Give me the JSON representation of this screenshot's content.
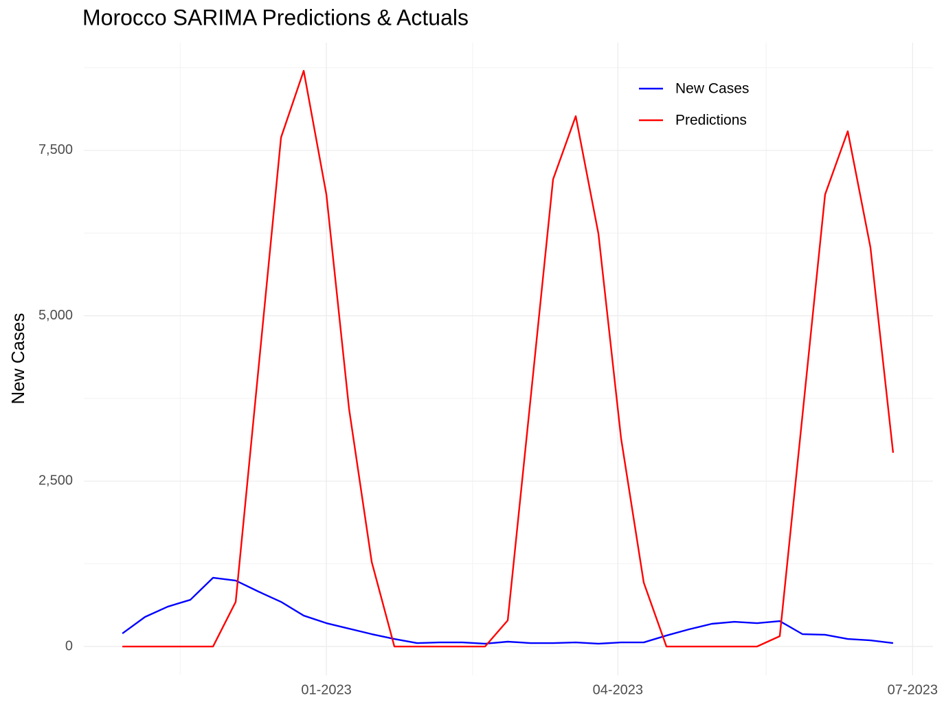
{
  "chart_data": {
    "type": "line",
    "title": "Morocco SARIMA Predictions & Actuals",
    "y_label": "New Cases",
    "x": [
      0,
      1,
      2,
      3,
      4,
      5,
      6,
      7,
      8,
      9,
      10,
      11,
      12,
      13,
      14,
      15,
      16,
      17,
      18,
      19,
      20,
      21,
      22,
      23,
      24,
      25,
      26,
      27,
      28,
      29,
      30,
      31,
      32,
      33,
      34
    ],
    "series": [
      {
        "name": "New Cases",
        "color": "#0000ff",
        "values": [
          197,
          447,
          602,
          706,
          1039,
          997,
          831,
          675,
          467,
          353,
          270,
          187,
          114,
          52,
          62,
          62,
          42,
          73,
          52,
          52,
          62,
          42,
          62,
          62,
          166,
          260,
          343,
          374,
          353,
          384,
          187,
          177,
          114,
          93,
          52
        ]
      },
      {
        "name": "Predictions",
        "color": "#ff0000",
        "values": [
          0,
          0,
          0,
          0,
          0,
          675,
          4183,
          7696,
          8704,
          6834,
          3594,
          1278,
          0,
          0,
          0,
          0,
          0,
          395,
          3718,
          7063,
          8018,
          6242,
          3147,
          966,
          0,
          0,
          0,
          0,
          0,
          156,
          3490,
          6834,
          7790,
          6034,
          2929
        ]
      }
    ],
    "xlim": [
      -1.7,
      35.76
    ],
    "xticks": [
      {
        "value": 9,
        "label": "01-2023"
      },
      {
        "value": 21.86,
        "label": "04-2023"
      },
      {
        "value": 34.86,
        "label": "07-2023"
      }
    ],
    "xminor": [
      2.55,
      15.45,
      28.4
    ],
    "ylim": [
      -436,
      9130
    ],
    "yticks": [
      0,
      {
        "value": 2500,
        "label": "2,500"
      },
      {
        "value": 5000,
        "label": "5,000"
      },
      {
        "value": 7500,
        "label": "7,500"
      }
    ],
    "yminor": [
      1250,
      3750,
      6250,
      8750
    ],
    "grid": true,
    "legend": "top-right"
  }
}
